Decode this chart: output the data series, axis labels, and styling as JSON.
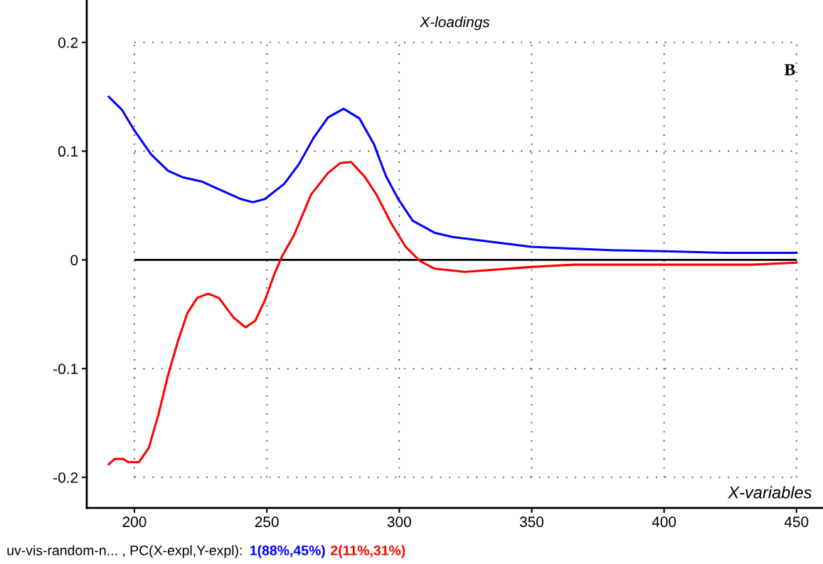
{
  "chart_data": {
    "type": "line",
    "title": "X-loadings",
    "xlabel": "X-variables",
    "annotations": [
      "B",
      "uv-vis-random-n... , PC(X-expl,Y-expl):"
    ],
    "xlim": [
      182,
      460
    ],
    "ylim": [
      -0.228,
      0.239
    ],
    "xticks": [
      200,
      250,
      300,
      350,
      400,
      450
    ],
    "yticks": [
      -0.2,
      -0.1,
      0,
      0.1,
      0.2
    ],
    "grid": true,
    "line_style": "solid",
    "ref_lines": [
      {
        "axis": "y",
        "value": 0,
        "color": "#000000"
      }
    ],
    "series": [
      {
        "name": "1(88%,45%)",
        "color": "#0000ff",
        "x": [
          190.3,
          195.3,
          200,
          206.3,
          212.7,
          218.2,
          225.5,
          232.8,
          240.2,
          244.7,
          249.3,
          256.6,
          262.1,
          267.6,
          273.1,
          279,
          285,
          290.5,
          295,
          299.6,
          305.1,
          313.3,
          320.2,
          349.8,
          379.7,
          400.3,
          423,
          450
        ],
        "values": [
          0.15,
          0.138,
          0.119,
          0.097,
          0.082,
          0.076,
          0.072,
          0.064,
          0.056,
          0.053,
          0.056,
          0.07,
          0.088,
          0.112,
          0.131,
          0.139,
          0.13,
          0.106,
          0.077,
          0.056,
          0.036,
          0.025,
          0.021,
          0.012,
          0.009,
          0.008,
          0.0065,
          0.0065
        ]
      },
      {
        "name": "2(11%,31%)",
        "color": "#ff0000",
        "x": [
          190.3,
          192.6,
          195.8,
          197.6,
          201.7,
          205.4,
          209,
          212.7,
          216.4,
          220,
          223.7,
          227.8,
          231.9,
          237.4,
          242,
          245.6,
          249.3,
          253,
          255.7,
          260.3,
          266.7,
          273.1,
          277.7,
          281.8,
          286.8,
          291.4,
          296.9,
          302.4,
          307.8,
          313.3,
          324.8,
          349.8,
          366,
          433.4,
          450
        ],
        "values": [
          -0.188,
          -0.183,
          -0.183,
          -0.186,
          -0.186,
          -0.173,
          -0.143,
          -0.106,
          -0.075,
          -0.049,
          -0.035,
          -0.031,
          -0.035,
          -0.053,
          -0.062,
          -0.056,
          -0.037,
          -0.012,
          0.003,
          0.023,
          0.06,
          0.08,
          0.089,
          0.09,
          0.077,
          0.06,
          0.034,
          0.012,
          -0.001,
          -0.008,
          -0.011,
          -0.0065,
          -0.0044,
          -0.0044,
          -0.0026
        ]
      }
    ]
  }
}
